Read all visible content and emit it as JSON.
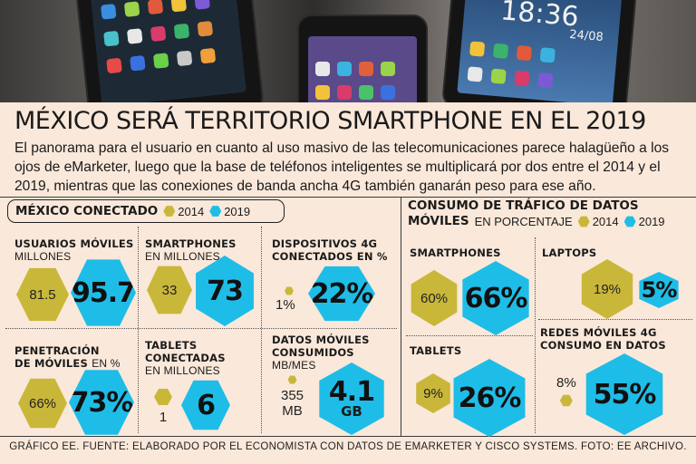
{
  "header": {
    "title": "MÉXICO SERÁ TERRITORIO SMARTPHONE EN EL 2019",
    "intro": "El panorama para el usuario en cuanto al uso masivo de las telecomunicaciones parece halagüeño a los ojos de eMarketer, luego que la base de teléfonos inteligentes se multiplicará por dos entre el 2014 y el 2019, mientras que las conexiones de banda ancha 4G también ganarán peso para ese año."
  },
  "photo": {
    "clock_time": "18:36",
    "clock_date": "24/08"
  },
  "colors": {
    "y2014": "#c9b73a",
    "y2019": "#1ebde8",
    "background": "#fae8da"
  },
  "legend": {
    "y2014": "2014",
    "y2019": "2019"
  },
  "chart_data": [
    {
      "type": "hexagon-comparison",
      "title": "MÉXICO CONECTADO",
      "series_names": [
        "2014",
        "2019"
      ],
      "metrics": [
        {
          "key": "usuarios",
          "label": "USUARIOS MÓVILES",
          "unit": "MILLONES",
          "v2014": 81.5,
          "v2019": 95.7,
          "d2014": "81.5",
          "d2019": "95.7"
        },
        {
          "key": "smartphones",
          "label": "SMARTPHONES",
          "unit": "EN MILLONES",
          "v2014": 33,
          "v2019": 73,
          "d2014": "33",
          "d2019": "73"
        },
        {
          "key": "dispositivos4g",
          "label": "DISPOSITIVOS 4G CONECTADOS EN %",
          "unit": "%",
          "v2014": 1,
          "v2019": 22,
          "d2014": "1%",
          "d2019": "22%"
        },
        {
          "key": "penetracion",
          "label": "PENETRACIÓN DE MÓVILES",
          "unit": "EN %",
          "v2014": 66,
          "v2019": 73,
          "d2014": "66%",
          "d2019": "73%"
        },
        {
          "key": "tablets",
          "label": "TABLETS CONECTADAS",
          "unit": "EN MILLONES",
          "v2014": 1,
          "v2019": 6,
          "d2014": "1",
          "d2019": "6"
        },
        {
          "key": "datos",
          "label": "DATOS MÓVILES CONSUMIDOS",
          "unit": "MB/MES",
          "v2014": 355,
          "v2019": 4100,
          "d2014": "355",
          "d2014_unit": "MB",
          "d2019": "4.1",
          "d2019_unit": "GB"
        }
      ]
    },
    {
      "type": "hexagon-comparison",
      "title": "CONSUMO DE TRÁFICO DE DATOS MÓVILES",
      "title_line1": "CONSUMO DE TRÁFICO DE DATOS",
      "title_line2": "MÓVILES",
      "unit": "EN PORCENTAJE",
      "series_names": [
        "2014",
        "2019"
      ],
      "metrics": [
        {
          "key": "smartphones",
          "label": "SMARTPHONES",
          "v2014": 60,
          "v2019": 66,
          "d2014": "60%",
          "d2019": "66%"
        },
        {
          "key": "laptops",
          "label": "LAPTOPS",
          "v2014": 19,
          "v2019": 5,
          "d2014": "19%",
          "d2019": "5%"
        },
        {
          "key": "tablets",
          "label": "TABLETS",
          "v2014": 9,
          "v2019": 26,
          "d2014": "9%",
          "d2019": "26%"
        },
        {
          "key": "redes4g",
          "label": "REDES MÓVILES 4G CONSUMO EN DATOS",
          "v2014": 8,
          "v2019": 55,
          "d2014": "8%",
          "d2019": "55%"
        }
      ]
    }
  ],
  "labels": {
    "usuarios": "USUARIOS MÓVILES",
    "usuarios_unit": "MILLONES",
    "smartphones": "SMARTPHONES",
    "smartphones_unit": "EN MILLONES",
    "disp_line1": "DISPOSITIVOS 4G",
    "disp_line2": "CONECTADOS EN %",
    "pen_line1": "PENETRACIÓN",
    "pen_line2": "DE MÓVILES",
    "pen_unit": "EN %",
    "tab_line1": "TABLETS",
    "tab_line2": "CONECTADAS",
    "tab_unit": "EN MILLONES",
    "datos_line1": "DATOS MÓVILES",
    "datos_line2": "CONSUMIDOS",
    "datos_unit": "MB/MES",
    "r_smart": "SMARTPHONES",
    "r_laptops": "LAPTOPS",
    "r_tablets": "TABLETS",
    "r_redes_line1": "REDES MÓVILES 4G",
    "r_redes_line2": "CONSUMO EN DATOS"
  },
  "footer": "GRÁFICO EE. FUENTE: ELABORADO POR EL ECONOMISTA CON DATOS DE EMARKETER Y CISCO SYSTEMS. FOTO: EE ARCHIVO."
}
